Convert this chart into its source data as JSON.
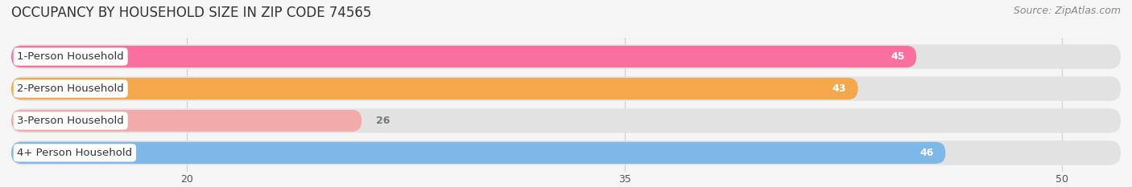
{
  "title": "OCCUPANCY BY HOUSEHOLD SIZE IN ZIP CODE 74565",
  "source": "Source: ZipAtlas.com",
  "categories": [
    "1-Person Household",
    "2-Person Household",
    "3-Person Household",
    "4+ Person Household"
  ],
  "values": [
    45,
    43,
    26,
    46
  ],
  "bar_colors": [
    "#F86FA0",
    "#F5A84B",
    "#F2AAAA",
    "#7DB8E8"
  ],
  "label_colors": [
    "white",
    "white",
    "#777777",
    "white"
  ],
  "xlim_data": [
    0,
    55
  ],
  "xmin": 14,
  "xmax": 52,
  "xticks": [
    20,
    35,
    50
  ],
  "background_color": "#f5f5f5",
  "bar_bg_color": "#e2e2e2",
  "title_fontsize": 12,
  "source_fontsize": 9,
  "label_fontsize": 9.5,
  "value_fontsize": 9
}
